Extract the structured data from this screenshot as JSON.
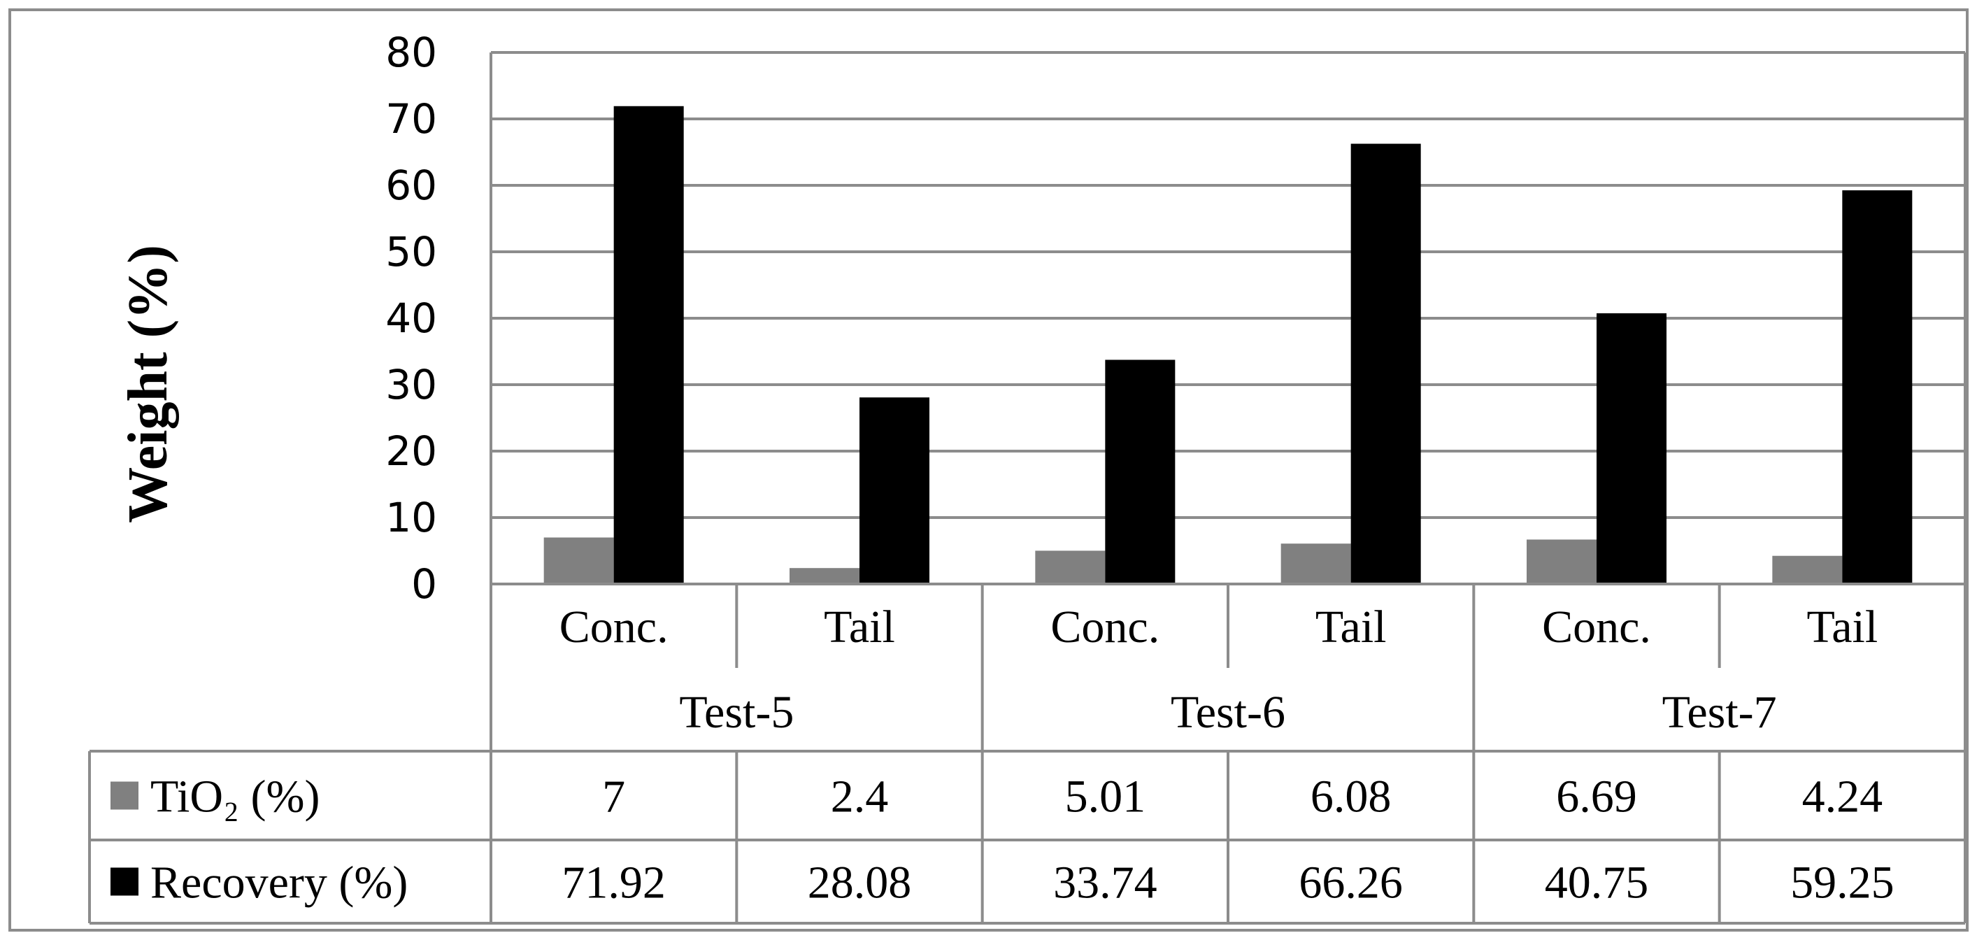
{
  "chart_data": {
    "type": "bar",
    "title": "",
    "xlabel": "",
    "ylabel": "Weight (%)",
    "ylim": [
      0,
      80
    ],
    "yticks": [
      0,
      10,
      20,
      30,
      40,
      50,
      60,
      70,
      80
    ],
    "grid": true,
    "groups": [
      "Test-5",
      "Test-6",
      "Test-7"
    ],
    "categories": [
      "Conc.",
      "Tail",
      "Conc.",
      "Tail",
      "Conc.",
      "Tail"
    ],
    "series": [
      {
        "name": "TiO₂ (%)",
        "color": "#808080",
        "values": [
          7,
          2.4,
          5.01,
          6.08,
          6.69,
          4.24
        ],
        "labels": [
          "7",
          "2.4",
          "5.01",
          "6.08",
          "6.69",
          "4.24"
        ]
      },
      {
        "name": "Recovery (%)",
        "color": "#000000",
        "values": [
          71.92,
          28.08,
          33.74,
          66.26,
          40.75,
          59.25
        ],
        "labels": [
          "71.92",
          "28.08",
          "33.74",
          "66.26",
          "40.75",
          "59.25"
        ]
      }
    ],
    "legend": "data-table-left"
  }
}
